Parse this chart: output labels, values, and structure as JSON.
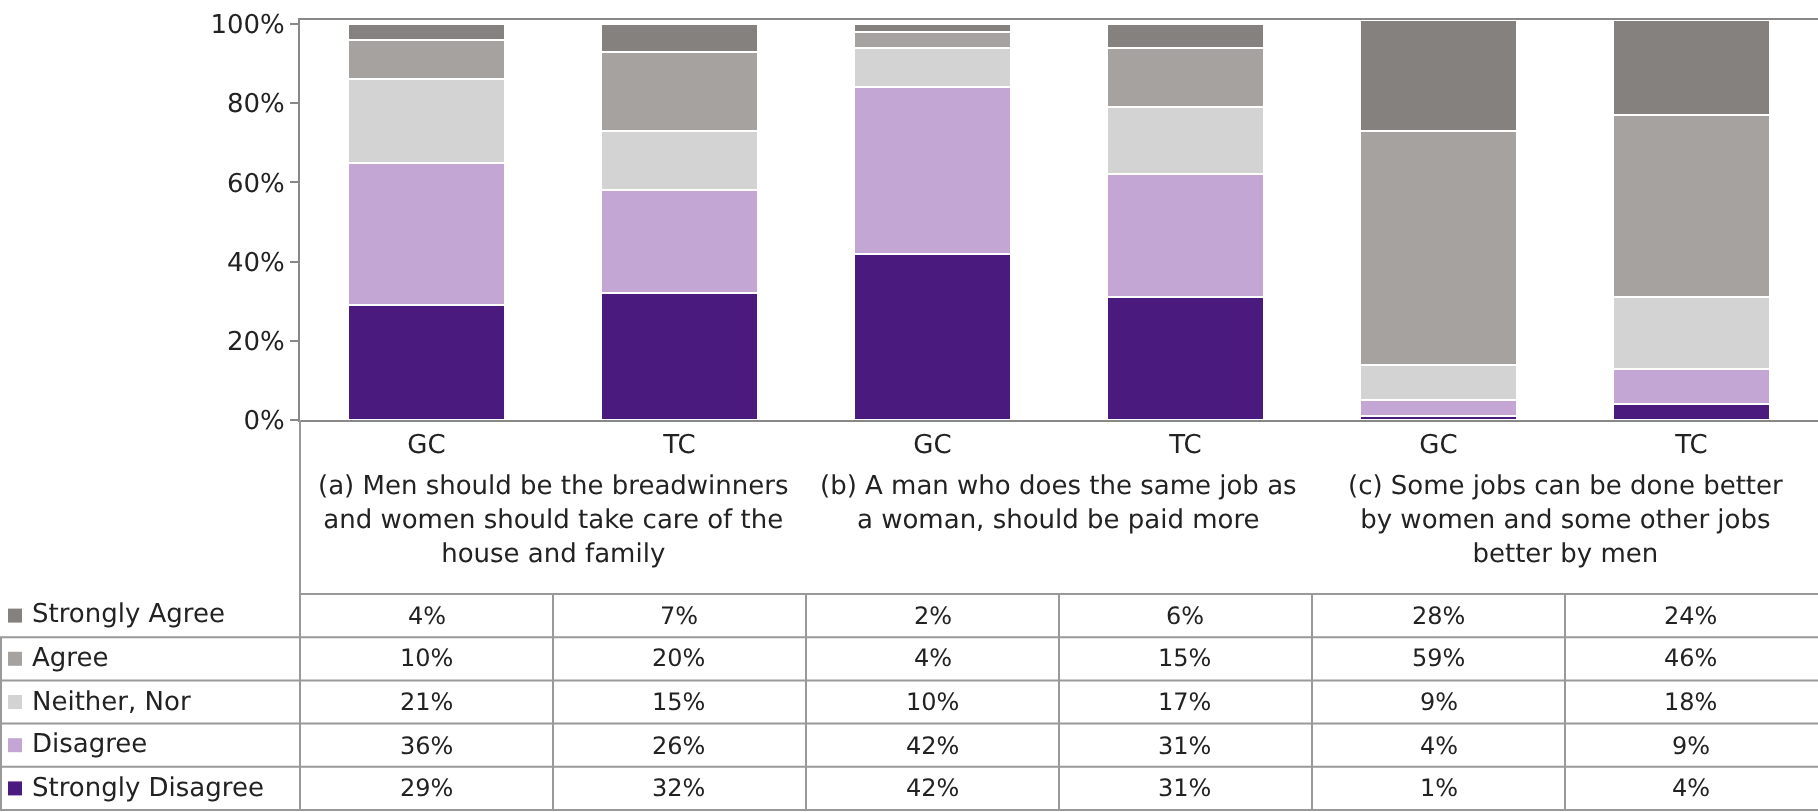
{
  "chart_data": {
    "type": "bar",
    "stacked": true,
    "categories": [
      "GC",
      "TC",
      "GC",
      "TC",
      "GC",
      "TC"
    ],
    "annotations": [
      "(a) Men should be the breadwinners and women should take care of the house and family",
      "(b) A man who does the same job as a woman, should be paid more",
      "(c) Some jobs can be done better by women and some other jobs better by men"
    ],
    "ylim": [
      0,
      101
    ],
    "yticks": [
      {
        "value": 0,
        "label": "0%"
      },
      {
        "value": 20,
        "label": "20%"
      },
      {
        "value": 40,
        "label": "40%"
      },
      {
        "value": 60,
        "label": "60%"
      },
      {
        "value": 80,
        "label": "80%"
      },
      {
        "value": 100,
        "label": "100%"
      }
    ],
    "grid": false,
    "legend": "bottom left",
    "series": [
      {
        "name": "Strongly Disagree",
        "color": "#4b1a7f",
        "values": [
          29,
          32,
          42,
          31,
          1,
          4
        ],
        "value_labels": [
          "29%",
          "32%",
          "42%",
          "31%",
          "1%",
          "4%"
        ]
      },
      {
        "name": "Disagree",
        "color": "#c3a6d4",
        "values": [
          36,
          26,
          42,
          31,
          4,
          9
        ],
        "value_labels": [
          "36%",
          "26%",
          "42%",
          "31%",
          "4%",
          "9%"
        ]
      },
      {
        "name": "Neither, Nor",
        "color": "#d3d3d3",
        "values": [
          21,
          15,
          10,
          17,
          9,
          18
        ],
        "value_labels": [
          "21%",
          "15%",
          "10%",
          "17%",
          "9%",
          "18%"
        ]
      },
      {
        "name": "Agree",
        "color": "#a5a2a0",
        "values": [
          10,
          20,
          4,
          15,
          59,
          46
        ],
        "value_labels": [
          "10%",
          "20%",
          "4%",
          "15%",
          "59%",
          "46%"
        ]
      },
      {
        "name": "Strongly Agree",
        "color": "#85817f",
        "values": [
          4,
          7,
          2,
          6,
          28,
          24
        ],
        "value_labels": [
          "4%",
          "7%",
          "2%",
          "6%",
          "28%",
          "24%"
        ]
      }
    ]
  }
}
